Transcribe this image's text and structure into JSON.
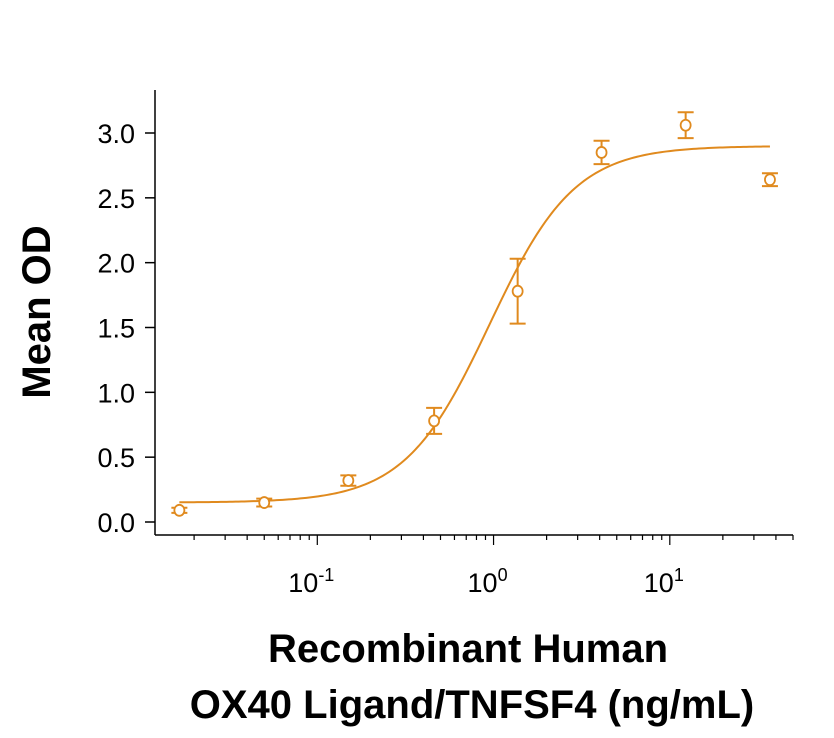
{
  "chart_data": {
    "type": "scatter",
    "title": "",
    "xlabel_lines": [
      "Recombinant Human",
      "OX40 Ligand/TNFSF4 (ng/mL)"
    ],
    "ylabel": "Mean OD",
    "x_scale": "log",
    "xlim": [
      0.012,
      50
    ],
    "ylim": [
      -0.08,
      3.3
    ],
    "y_ticks": [
      {
        "value": 0.0,
        "label": "0.0"
      },
      {
        "value": 0.5,
        "label": "0.5"
      },
      {
        "value": 1.0,
        "label": "1.0"
      },
      {
        "value": 1.5,
        "label": "1.5"
      },
      {
        "value": 2.0,
        "label": "2.0"
      },
      {
        "value": 2.5,
        "label": "2.5"
      },
      {
        "value": 3.0,
        "label": "3.0"
      }
    ],
    "x_ticks": [
      {
        "value": 0.1,
        "base": "10",
        "exp": "-1"
      },
      {
        "value": 1,
        "base": "10",
        "exp": "0"
      },
      {
        "value": 10,
        "base": "10",
        "exp": "1"
      }
    ],
    "grid": false,
    "legend": "none",
    "color": "#E08A1E",
    "series": [
      {
        "points": [
          {
            "x": 0.0165,
            "y": 0.09,
            "err": 0.02
          },
          {
            "x": 0.05,
            "y": 0.15,
            "err": 0.03
          },
          {
            "x": 0.15,
            "y": 0.32,
            "err": 0.04
          },
          {
            "x": 0.46,
            "y": 0.78,
            "err": 0.1
          },
          {
            "x": 1.37,
            "y": 1.78,
            "err": 0.25
          },
          {
            "x": 4.1,
            "y": 2.85,
            "err": 0.09
          },
          {
            "x": 12.3,
            "y": 3.06,
            "err": 0.1
          },
          {
            "x": 37,
            "y": 2.64,
            "err": 0.05
          }
        ],
        "fit": {
          "model": "4PL",
          "bottom": 0.15,
          "top": 2.9,
          "ec50": 0.95,
          "hill": 1.8
        }
      }
    ]
  }
}
